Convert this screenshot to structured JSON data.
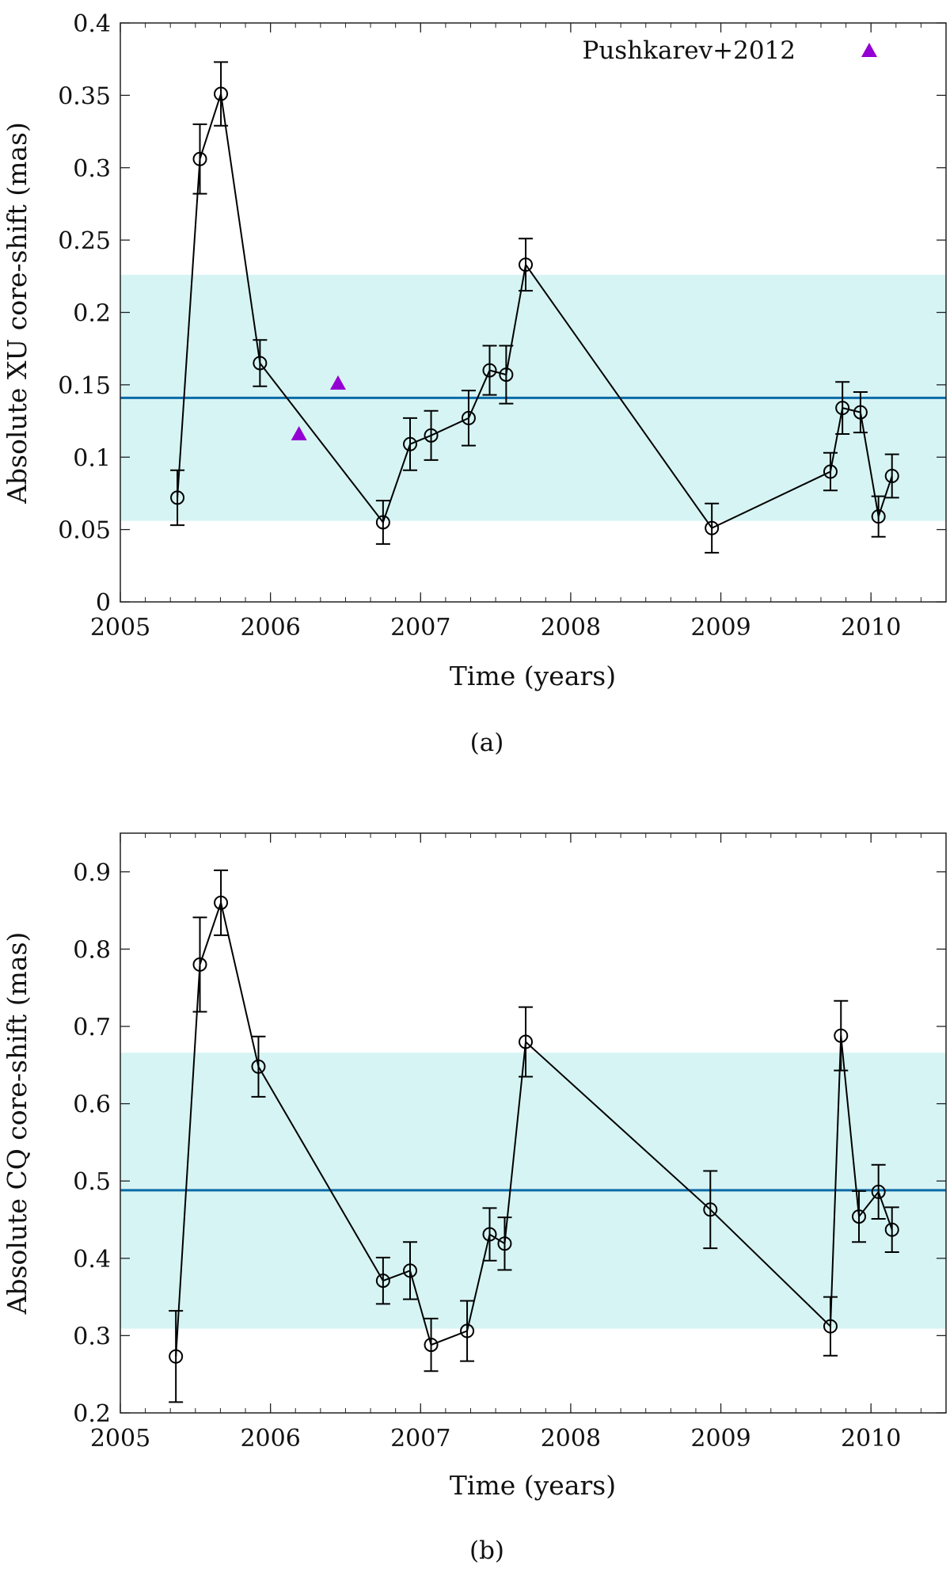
{
  "chart_data": [
    {
      "type": "line",
      "caption": "(a)",
      "xlabel": "Time (years)",
      "ylabel": "Absolute XU core-shift (mas)",
      "xlim": [
        2005,
        2010.5
      ],
      "ylim": [
        0,
        0.4
      ],
      "xticks": [
        "2005",
        "2006",
        "2007",
        "2008",
        "2009",
        "2010"
      ],
      "yticks": [
        "0",
        "0.05",
        "0.1",
        "0.15",
        "0.2",
        "0.25",
        "0.3",
        "0.35",
        "0.4"
      ],
      "grid": false,
      "mean_line": 0.141,
      "band": [
        0.056,
        0.226
      ],
      "colors": {
        "band": "#d6f4f4",
        "mean": "#0b6aa6",
        "series": "#000000",
        "reference": "#9400d3"
      },
      "series": {
        "x": [
          2005.38,
          2005.53,
          2005.67,
          2005.93,
          2006.75,
          2006.93,
          2007.07,
          2007.32,
          2007.46,
          2007.57,
          2007.7,
          2008.94,
          2009.73,
          2009.81,
          2009.93,
          2010.05,
          2010.14
        ],
        "y": [
          0.072,
          0.306,
          0.351,
          0.165,
          0.055,
          0.109,
          0.115,
          0.127,
          0.16,
          0.157,
          0.233,
          0.051,
          0.09,
          0.134,
          0.131,
          0.059,
          0.087
        ],
        "err": [
          0.019,
          0.024,
          0.022,
          0.016,
          0.015,
          0.018,
          0.017,
          0.019,
          0.017,
          0.02,
          0.018,
          0.017,
          0.013,
          0.018,
          0.014,
          0.014,
          0.015
        ]
      },
      "reference": {
        "name": "Pushkarev+2012",
        "x": [
          2006.19,
          2006.45
        ],
        "y": [
          0.116,
          0.151
        ]
      },
      "legend_position": "top-right"
    },
    {
      "type": "line",
      "caption": "(b)",
      "xlabel": "Time (years)",
      "ylabel": "Absolute CQ core-shift (mas)",
      "xlim": [
        2005,
        2010.5
      ],
      "ylim": [
        0.2,
        0.95
      ],
      "xticks": [
        "2005",
        "2006",
        "2007",
        "2008",
        "2009",
        "2010"
      ],
      "yticks": [
        "0.2",
        "0.3",
        "0.4",
        "0.5",
        "0.6",
        "0.7",
        "0.8",
        "0.9"
      ],
      "grid": false,
      "mean_line": 0.488,
      "band": [
        0.309,
        0.666
      ],
      "colors": {
        "band": "#d6f4f4",
        "mean": "#0b6aa6",
        "series": "#000000"
      },
      "series": {
        "x": [
          2005.37,
          2005.53,
          2005.67,
          2005.92,
          2006.75,
          2006.93,
          2007.07,
          2007.31,
          2007.46,
          2007.56,
          2007.7,
          2008.93,
          2009.73,
          2009.8,
          2009.92,
          2010.05,
          2010.14
        ],
        "y": [
          0.273,
          0.78,
          0.86,
          0.648,
          0.371,
          0.384,
          0.288,
          0.306,
          0.431,
          0.419,
          0.68,
          0.463,
          0.312,
          0.688,
          0.454,
          0.486,
          0.437
        ],
        "err": [
          0.059,
          0.061,
          0.042,
          0.039,
          0.03,
          0.037,
          0.034,
          0.039,
          0.034,
          0.034,
          0.045,
          0.05,
          0.038,
          0.045,
          0.033,
          0.035,
          0.029
        ]
      }
    }
  ]
}
